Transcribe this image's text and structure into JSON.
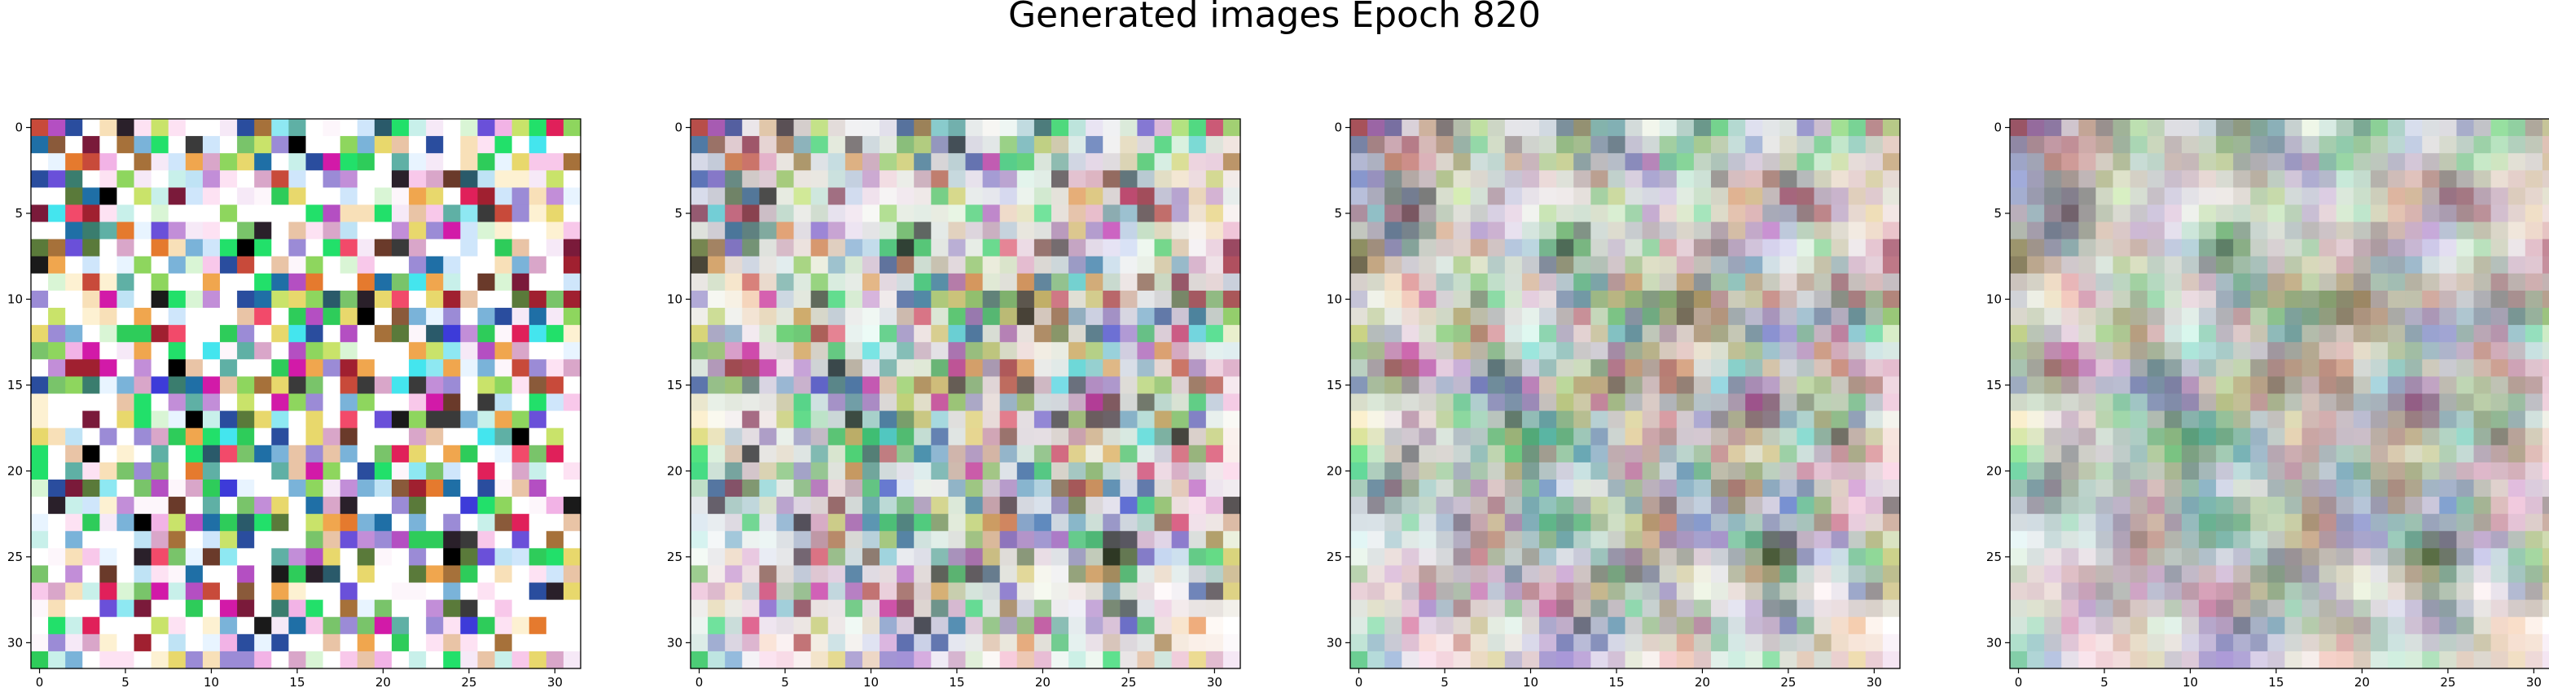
{
  "figure": {
    "title": "Generated images Epoch 820"
  },
  "panels": [
    {
      "index": 0,
      "x_ticks": [
        "0",
        "5",
        "10",
        "15",
        "20",
        "25",
        "30"
      ],
      "y_ticks": [
        "0",
        "5",
        "10",
        "15",
        "20",
        "25",
        "30"
      ],
      "blur": 0.0,
      "seed": 0
    },
    {
      "index": 1,
      "x_ticks": [
        "0",
        "5",
        "10",
        "15",
        "20",
        "25",
        "30"
      ],
      "y_ticks": [
        "0",
        "5",
        "10",
        "15",
        "20",
        "25",
        "30"
      ],
      "blur": 0.08,
      "seed": 7
    },
    {
      "index": 2,
      "x_ticks": [
        "0",
        "5",
        "10",
        "15",
        "20",
        "25",
        "30"
      ],
      "y_ticks": [
        "0",
        "5",
        "10",
        "15",
        "20",
        "25",
        "30"
      ],
      "blur": 0.22,
      "seed": 13
    },
    {
      "index": 3,
      "x_ticks": [
        "0",
        "5",
        "10",
        "15",
        "20",
        "25",
        "30"
      ],
      "y_ticks": [
        "0",
        "5",
        "10",
        "15",
        "20",
        "25",
        "30"
      ],
      "blur": 0.4,
      "seed": 19
    }
  ],
  "image": {
    "grid_size": 32,
    "pixel_palette": [
      "#ffffff",
      "#fdf6fb",
      "#f6e9f7",
      "#fde2f3",
      "#f8c8ea",
      "#f2b3e6",
      "#e8f4ff",
      "#cfe6fb",
      "#bfe3f5",
      "#c8f0ea",
      "#d9f5d5",
      "#fdf1d2",
      "#f8e0b8",
      "#e9c4a6",
      "#d9a6c9",
      "#c28ed8",
      "#9b8bd6",
      "#7ab3d9",
      "#5fb0a5",
      "#79c46a",
      "#2ecc5a",
      "#22e06a",
      "#8ed65e",
      "#c9e36a",
      "#e8d86c",
      "#f0a64e",
      "#e57a2e",
      "#f24a6a",
      "#e0205a",
      "#d21aa8",
      "#b44fc2",
      "#6a50d9",
      "#3d3bd9",
      "#2a4d9e",
      "#1f6fa6",
      "#2a5a6a",
      "#3a7d6e",
      "#5a7a3a",
      "#3a3a3a",
      "#2a202a",
      "#1a1a1a",
      "#000000",
      "#6a3a2a",
      "#8a5a3a",
      "#a6713a",
      "#c84a3a",
      "#a02030",
      "#7a1a3a",
      "#44e5ee",
      "#8ee8f2"
    ]
  }
}
